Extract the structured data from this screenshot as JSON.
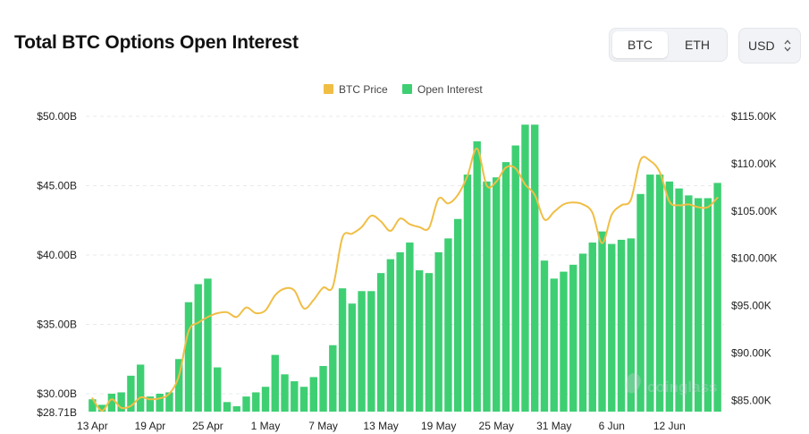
{
  "page": {
    "title": "Total BTC Options Open Interest"
  },
  "toggle": {
    "options": [
      "BTC",
      "ETH"
    ],
    "selected": "BTC"
  },
  "currency": {
    "value": "USD"
  },
  "watermark": "coinglass",
  "chart_data": {
    "type": "bar+line",
    "legend": [
      {
        "name": "BTC Price",
        "color": "#f0be45"
      },
      {
        "name": "Open Interest",
        "color": "#3ecf73"
      }
    ],
    "x_tick_labels": [
      "13 Apr",
      "19 Apr",
      "25 Apr",
      "1 May",
      "7 May",
      "13 May",
      "19 May",
      "25 May",
      "31 May",
      "6 Jun",
      "12 Jun"
    ],
    "y_left": {
      "ticks": [
        30,
        35,
        40,
        45,
        50
      ],
      "tick_labels": [
        "$30.00B",
        "$35.00B",
        "$40.00B",
        "$45.00B",
        "$50.00B"
      ],
      "min": 28.71,
      "min_label": "$28.71B",
      "max": 50
    },
    "y_right": {
      "ticks": [
        85,
        90,
        95,
        100,
        105,
        110,
        115
      ],
      "tick_labels": [
        "$85.00K",
        "$90.00K",
        "$95.00K",
        "$100.00K",
        "$105.00K",
        "$110.00K",
        "$115.00K"
      ],
      "min": 83.8,
      "max": 115
    },
    "legend_position": "top-center",
    "grid": true,
    "series": [
      {
        "name": "Open Interest",
        "axis": "left",
        "kind": "bar",
        "values": [
          29.6,
          29.2,
          30.0,
          30.1,
          31.3,
          32.1,
          29.8,
          30.0,
          30.1,
          32.5,
          36.6,
          37.9,
          38.3,
          31.9,
          29.4,
          29.1,
          29.8,
          30.1,
          30.5,
          32.8,
          31.4,
          30.9,
          30.5,
          31.2,
          32.0,
          33.5,
          37.6,
          36.5,
          37.4,
          37.4,
          38.7,
          39.7,
          40.2,
          40.9,
          38.9,
          38.7,
          40.2,
          41.2,
          42.6,
          45.8,
          48.2,
          45.3,
          45.6,
          46.7,
          47.9,
          49.4,
          49.4,
          39.6,
          38.3,
          38.8,
          39.3,
          40.1,
          40.9,
          41.7,
          40.8,
          41.1,
          41.2,
          44.4,
          45.8,
          45.8,
          45.3,
          44.8,
          44.3,
          44.1,
          44.1,
          45.2
        ],
        "color": "#3ecf73"
      },
      {
        "name": "BTC Price",
        "axis": "right",
        "kind": "line",
        "values": [
          85.2,
          83.9,
          85.1,
          84.2,
          84.4,
          85.3,
          85.1,
          85.2,
          85.7,
          87.6,
          92.3,
          93.2,
          93.8,
          94.2,
          94.3,
          93.8,
          94.8,
          94.2,
          94.5,
          96.1,
          96.8,
          96.6,
          94.7,
          95.6,
          96.9,
          97.0,
          102.2,
          102.6,
          103.3,
          104.5,
          103.9,
          102.9,
          104.2,
          103.6,
          103.3,
          103.2,
          106.3,
          105.8,
          106.7,
          108.7,
          111.6,
          107.7,
          108.1,
          109.6,
          109.5,
          107.8,
          106.7,
          104.1,
          104.9,
          105.7,
          105.9,
          105.7,
          104.8,
          101.6,
          104.6,
          105.6,
          106.2,
          110.4,
          110.3,
          109.1,
          106.0,
          105.6,
          105.7,
          105.4,
          105.4,
          106.4
        ],
        "color": "#f0be45"
      }
    ]
  }
}
